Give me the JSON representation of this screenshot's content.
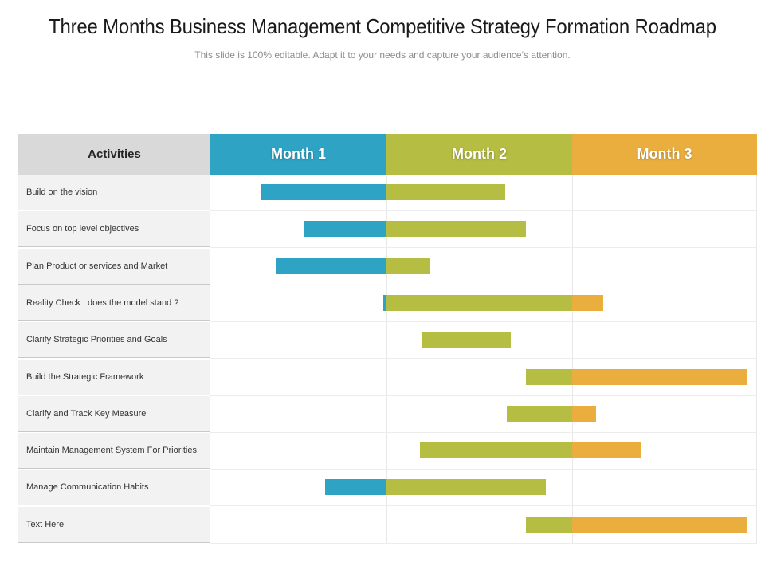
{
  "title": "Three Months Business Management Competitive Strategy Formation Roadmap",
  "subtitle": "This slide is 100% editable. Adapt it to your needs and capture your audience’s attention.",
  "colors": {
    "month1": "#2ea3c4",
    "month2": "#b5bd42",
    "month3": "#eaae3f"
  },
  "header": {
    "activities": "Activities",
    "months": [
      "Month 1",
      "Month 2",
      "Month 3"
    ]
  },
  "rows": [
    {
      "label": "Build on the vision",
      "start": 0.29,
      "end": 1.64
    },
    {
      "label": "Focus on top level objectives",
      "start": 0.53,
      "end": 1.75
    },
    {
      "label": "Plan Product or services and Market",
      "start": 0.37,
      "end": 1.23
    },
    {
      "label": "Reality Check : does the model stand ?",
      "start": 0.98,
      "end": 2.17
    },
    {
      "label": "Clarify Strategic Priorities and Goals",
      "start": 1.19,
      "end": 1.67
    },
    {
      "label": "Build the Strategic Framework",
      "start": 1.75,
      "end": 2.95
    },
    {
      "label": "Clarify and Track Key Measure",
      "start": 1.65,
      "end": 2.13
    },
    {
      "label": "Maintain Management System For Priorities",
      "start": 1.18,
      "end": 2.37
    },
    {
      "label": "Manage Communication Habits",
      "start": 0.65,
      "end": 1.86
    },
    {
      "label": "Text Here",
      "start": 1.75,
      "end": 2.95
    }
  ]
}
